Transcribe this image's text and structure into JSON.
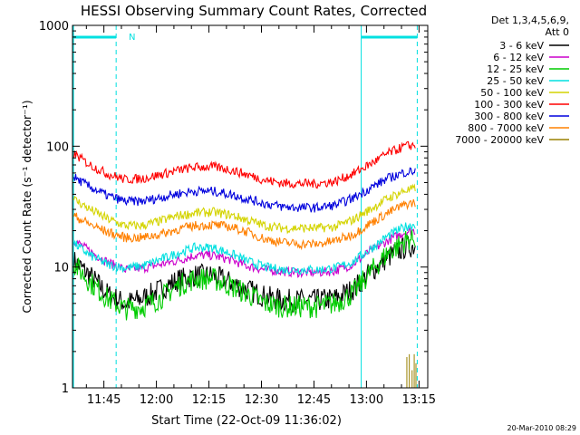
{
  "chart_data": {
    "type": "line",
    "title": "HESSI Observing Summary Count Rates, Corrected",
    "xlabel": "Start Time (22-Oct-09 11:36:02)",
    "ylabel": "Corrected Count Rate (s⁻¹ detector⁻¹)",
    "yscale": "log",
    "ylim": [
      1,
      1000
    ],
    "xlim": [
      "11:36:02",
      "13:17:30"
    ],
    "x_tick_labels": [
      "11:45",
      "12:00",
      "12:15",
      "12:30",
      "12:45",
      "13:00",
      "13:15"
    ],
    "y_tick_labels": [
      "1",
      "10",
      "100",
      "1000"
    ],
    "grid": false,
    "legend_header": [
      "Det 1,3,4,5,6,9,",
      "Att 0"
    ],
    "legend_position": "right",
    "x_minutes_from_start": [
      0,
      5,
      10,
      15,
      20,
      25,
      30,
      35,
      40,
      45,
      50,
      55,
      60,
      65,
      70,
      75,
      80,
      85,
      90,
      95,
      100
    ],
    "series": [
      {
        "name": "3 - 6 keV",
        "color": "#000000",
        "values": [
          11.5,
          8.5,
          6.0,
          5.0,
          5.5,
          6.5,
          7.8,
          8.5,
          8.5,
          7.5,
          6.5,
          5.7,
          5.3,
          5.3,
          5.3,
          5.5,
          6.5,
          9.0,
          12.0,
          14.5,
          15.5
        ]
      },
      {
        "name": "6 - 12 keV",
        "color": "#cc00cc",
        "values": [
          17,
          13.5,
          11,
          9.5,
          9.8,
          10.5,
          11.3,
          12.5,
          12.5,
          11.5,
          10.2,
          9.5,
          9.2,
          9.0,
          9.0,
          9.3,
          10.5,
          13.5,
          16.5,
          19.5,
          20.5
        ]
      },
      {
        "name": "12 - 25 keV",
        "color": "#00cc00",
        "values": [
          11,
          7.5,
          5.5,
          4.5,
          4.7,
          5.5,
          7.0,
          8.0,
          8.0,
          7.0,
          6.0,
          5.0,
          4.7,
          4.7,
          4.7,
          5.0,
          6.0,
          9.0,
          13.0,
          16.5,
          18.5
        ]
      },
      {
        "name": "25 - 50 keV",
        "color": "#00e0e0",
        "values": [
          16,
          12.5,
          10.5,
          9.8,
          10.2,
          11.5,
          13.0,
          14.5,
          14.5,
          13.0,
          11.2,
          10.0,
          9.5,
          9.5,
          9.5,
          9.8,
          11.0,
          14.0,
          18.0,
          21.5,
          23.5
        ]
      },
      {
        "name": "50 - 100 keV",
        "color": "#d4d400",
        "values": [
          37,
          30,
          25,
          22,
          22,
          24,
          26.5,
          28,
          28.5,
          27,
          24.5,
          22,
          21,
          21,
          21,
          21.5,
          24.5,
          30,
          37,
          43,
          45
        ]
      },
      {
        "name": "100 - 300 keV",
        "color": "#ff0000",
        "values": [
          88,
          70,
          59,
          53,
          54,
          58,
          63,
          67,
          67.5,
          64,
          58,
          52.5,
          49.5,
          49,
          49,
          51,
          59,
          71,
          87,
          100,
          104
        ]
      },
      {
        "name": "300 - 800 keV",
        "color": "#0000dd",
        "values": [
          56,
          46,
          39,
          35,
          35,
          37.5,
          40.5,
          42.5,
          42.5,
          40,
          36.5,
          33.5,
          31.5,
          31,
          31,
          32.5,
          37,
          45,
          54,
          61,
          63
        ]
      },
      {
        "name": "800 - 7000 keV",
        "color": "#ff8000",
        "values": [
          27,
          22.5,
          19.5,
          17.5,
          17.5,
          18.7,
          20.5,
          22,
          22.3,
          21.5,
          19.5,
          17,
          16,
          15.5,
          15.5,
          16.5,
          18.5,
          23,
          28,
          33,
          35
        ]
      },
      {
        "name": "7000 - 20000 keV",
        "color": "#998000",
        "values": [
          null,
          null,
          null,
          null,
          null,
          null,
          null,
          null,
          null,
          null,
          null,
          null,
          null,
          null,
          null,
          null,
          null,
          null,
          null,
          1.5,
          null
        ]
      }
    ],
    "flag_label": "N",
    "flag_bars": [
      [
        "11:36:02",
        "11:48:30"
      ],
      [
        "12:58:30",
        "13:14:30"
      ]
    ],
    "flag_vertical_markers": [
      "11:48:30",
      "12:58:30",
      "13:14:30"
    ],
    "colors": {
      "flag": "#00e0e0"
    }
  },
  "footer": {
    "timestamp": "20-Mar-2010 08:29"
  }
}
